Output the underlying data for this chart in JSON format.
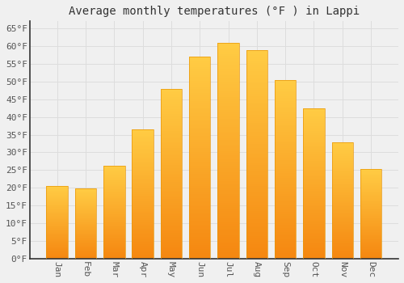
{
  "title": "Average monthly temperatures (°F ) in Lappi",
  "months": [
    "Jan",
    "Feb",
    "Mar",
    "Apr",
    "May",
    "Jun",
    "Jul",
    "Aug",
    "Sep",
    "Oct",
    "Nov",
    "Dec"
  ],
  "values": [
    20.5,
    19.8,
    26.3,
    36.5,
    48.0,
    57.0,
    60.8,
    58.8,
    50.5,
    42.5,
    32.8,
    25.3
  ],
  "bar_color_top": "#FDB931",
  "bar_color_bottom": "#F5A623",
  "background_color": "#F0F0F0",
  "grid_color": "#DDDDDD",
  "yticks": [
    0,
    5,
    10,
    15,
    20,
    25,
    30,
    35,
    40,
    45,
    50,
    55,
    60,
    65
  ],
  "ylim": [
    0,
    67
  ],
  "title_fontsize": 10,
  "tick_fontsize": 8,
  "font_family": "monospace",
  "bar_width": 0.75
}
